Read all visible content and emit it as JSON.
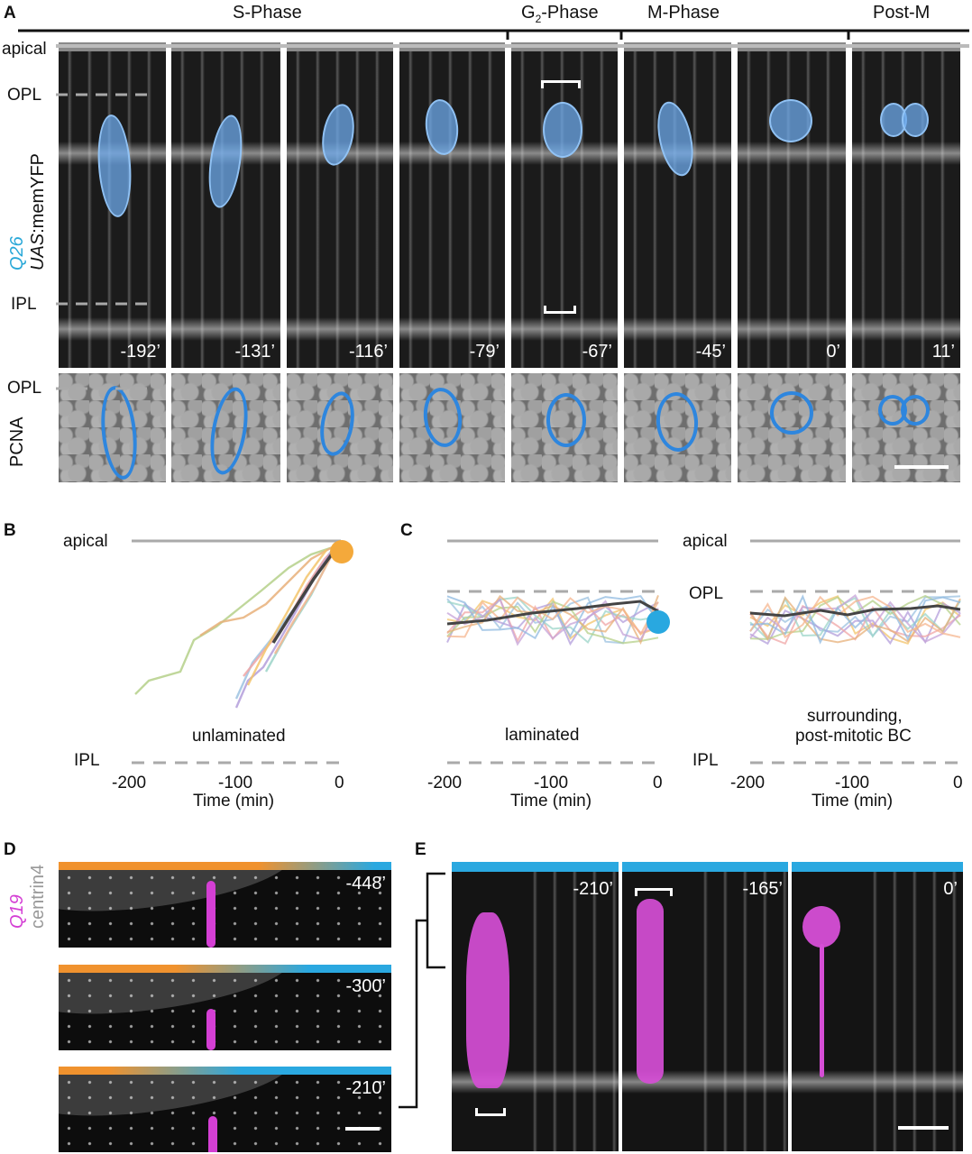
{
  "panel_letters": {
    "a": "A",
    "b": "B",
    "c": "C",
    "d": "D",
    "e": "E"
  },
  "panel_a": {
    "phases": {
      "s": "S-Phase",
      "g2_prefix": "G",
      "g2_sub": "2",
      "g2_suffix": "-Phase",
      "m": "M-Phase",
      "post": "Post-M"
    },
    "row_labels": {
      "apical": "apical",
      "opl": "OPL",
      "ipl": "IPL",
      "opl2": "OPL",
      "pcna": "PCNA"
    },
    "side_label": {
      "q26": "Q26",
      "uas": "UAS",
      "memyfp": ":memYFP"
    },
    "times": [
      "-192’",
      "-131’",
      "-116’",
      "-79’",
      "-67’",
      "-45’",
      "0’",
      "11’"
    ],
    "colors": {
      "cell": "#7fb3ea",
      "ring": "#2e86de",
      "q26": "#29a8d8"
    }
  },
  "panel_b": {
    "apical": "apical",
    "ipl": "IPL",
    "category": "unlaminated",
    "xlabel": "Time (min)",
    "ticks": [
      "-200",
      "-100",
      "0"
    ],
    "marker_color": "#f4a93b"
  },
  "panel_c": {
    "apical": "apical",
    "opl": "OPL",
    "ipl": "IPL",
    "left_category": "laminated",
    "right_category_line1": "surrounding,",
    "right_category_line2": "post-mitotic BC",
    "xlabel_left": "Time (min)",
    "xlabel_right": "Time (min)",
    "ticks_left": [
      "-200",
      "-100",
      "0"
    ],
    "ticks_right": [
      "-200",
      "-100",
      "0"
    ],
    "marker_color": "#29a8e0"
  },
  "panel_d": {
    "side_q19": "Q19",
    "side_centrin": "centrin4",
    "times": [
      "-448’",
      "-300’",
      "-210’"
    ],
    "colors": {
      "q19": "#d43fd4",
      "orange": "#f0922e",
      "blue": "#2aa8e0"
    }
  },
  "panel_e": {
    "times": [
      "-210’",
      "-165’",
      "0’"
    ],
    "colors": {
      "bar": "#2aa8e0",
      "cell": "#d64ed6"
    }
  }
}
